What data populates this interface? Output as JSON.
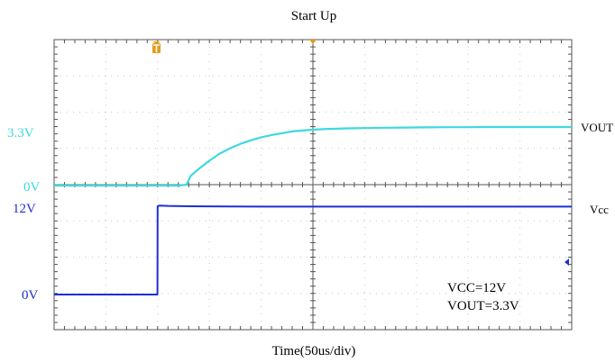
{
  "chart_data": {
    "type": "line",
    "title": "Start Up",
    "xlabel": "Time(50us/div)",
    "ylabel": "",
    "grid": true,
    "x_unit": "us",
    "xlim": [
      0,
      500
    ],
    "divisions": {
      "x": 10,
      "y": 8
    },
    "channels": [
      {
        "name": "Vout",
        "label": "VOUT",
        "color": "#3ed8e0",
        "level_labels": [
          {
            "text": "3.3V",
            "value": 3.3
          },
          {
            "text": "0V",
            "value": 0
          }
        ],
        "x": [
          0,
          20,
          40,
          60,
          80,
          100,
          110,
          120,
          128,
          132,
          135,
          140,
          150,
          160,
          170,
          180,
          190,
          200,
          210,
          220,
          230,
          240,
          250,
          260,
          270,
          280,
          290,
          300,
          320,
          340,
          360,
          380,
          400,
          420,
          440,
          460,
          480,
          500
        ],
        "values": [
          0,
          0,
          0,
          0,
          0,
          0,
          0,
          0,
          0.05,
          0.55,
          0.7,
          0.95,
          1.4,
          1.8,
          2.1,
          2.35,
          2.55,
          2.72,
          2.85,
          2.95,
          3.05,
          3.1,
          3.15,
          3.18,
          3.2,
          3.22,
          3.23,
          3.24,
          3.26,
          3.27,
          3.28,
          3.29,
          3.29,
          3.3,
          3.3,
          3.3,
          3.3,
          3.3
        ]
      },
      {
        "name": "Vcc",
        "label": "Vcc",
        "color": "#1f2fcf",
        "level_labels": [
          {
            "text": "12V",
            "value": 12
          },
          {
            "text": "0V",
            "value": 0
          }
        ],
        "x": [
          0,
          99.8,
          100,
          102,
          110,
          130,
          200,
          300,
          400,
          500
        ],
        "values": [
          0,
          0,
          12,
          12.1,
          12.05,
          12.0,
          11.95,
          11.95,
          11.95,
          11.95
        ]
      }
    ],
    "annotations": [
      "VCC=12V",
      "VOUT=3.3V"
    ]
  },
  "colors": {
    "grid": "#c8c8c8",
    "frame": "#555555",
    "trigger_marker": "#e39b1a",
    "ref_marker": "#2030c8"
  },
  "icons": {
    "trigger_marker": "trigger-t-icon",
    "time_reference": "trigger-position-icon",
    "vcc_reference": "level-arrow-icon"
  }
}
